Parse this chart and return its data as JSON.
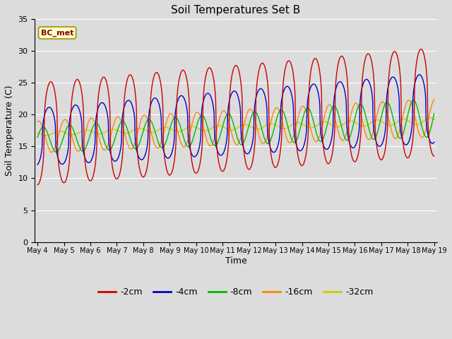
{
  "title": "Soil Temperatures Set B",
  "xlabel": "Time",
  "ylabel": "Soil Temperature (C)",
  "ylim": [
    0,
    35
  ],
  "yticks": [
    0,
    5,
    10,
    15,
    20,
    25,
    30,
    35
  ],
  "annotation_text": "BC_met",
  "colors": {
    "-2cm": "#cc0000",
    "-4cm": "#0000cc",
    "-8cm": "#00bb00",
    "-16cm": "#ff8800",
    "-32cm": "#cccc00"
  },
  "legend_labels": [
    "-2cm",
    "-4cm",
    "-8cm",
    "-16cm",
    "-32cm"
  ],
  "num_points": 1441,
  "bg_color": "#dcdcdc",
  "fig_bg": "#dcdcdc"
}
